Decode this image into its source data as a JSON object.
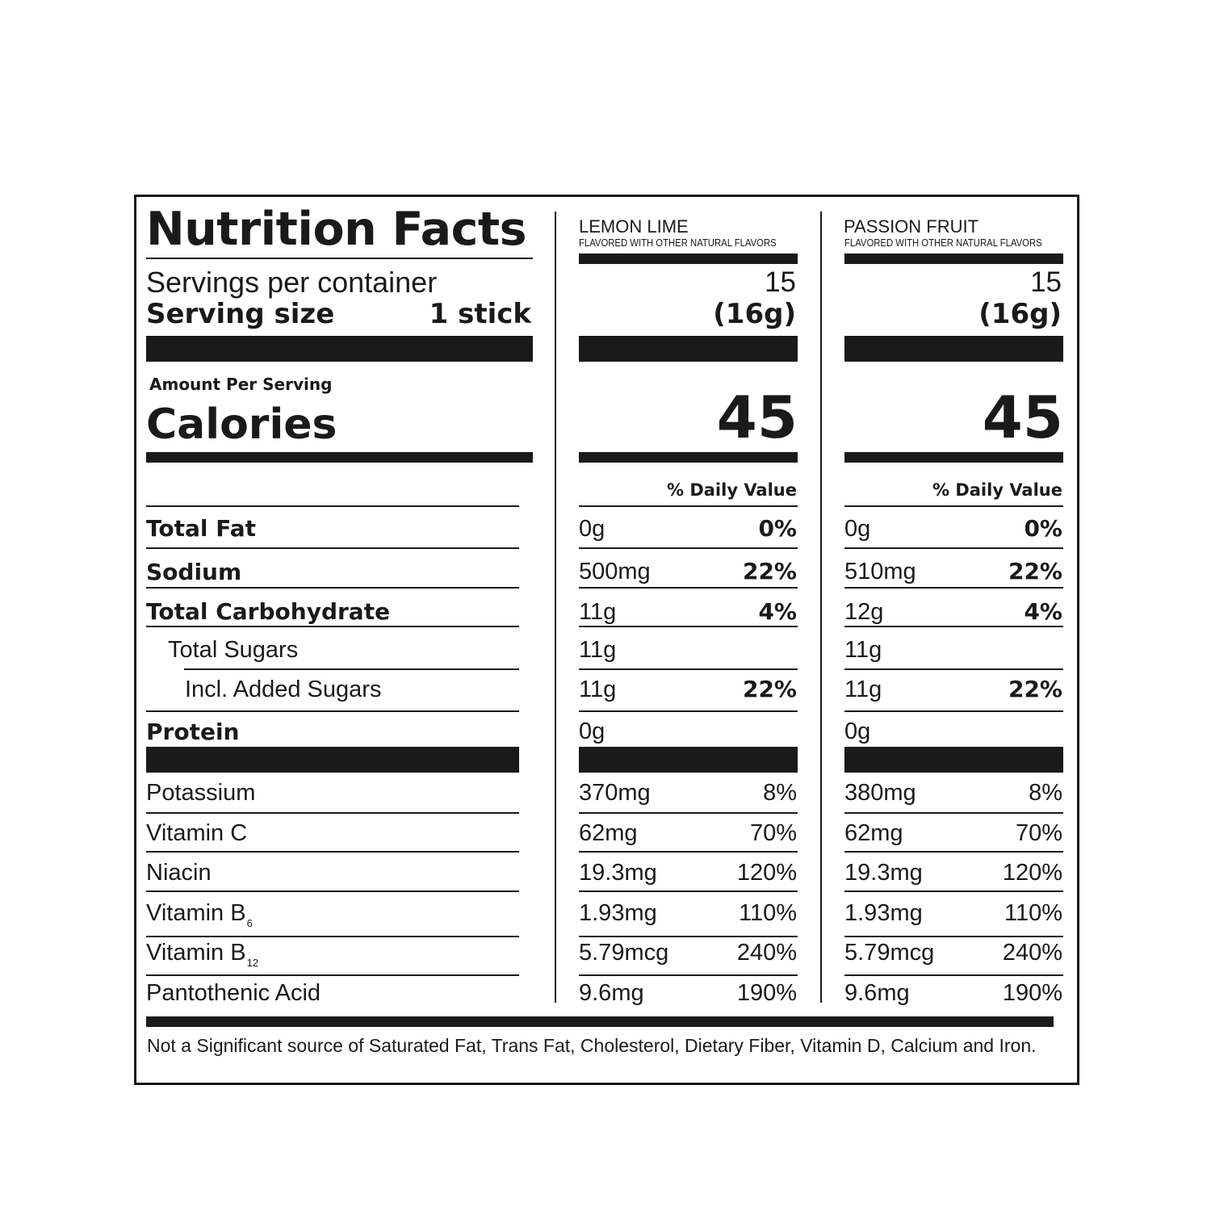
{
  "title": "Nutrition Facts",
  "servings_label": "Servings per container",
  "serving_size_label": "Serving size",
  "serving_size_value": "1 stick",
  "amount_per_serving": "Amount Per Serving",
  "calories_label": "Calories",
  "daily_value_label": "% Daily Value",
  "nutrient_labels": {
    "total_fat": "Total Fat",
    "sodium": "Sodium",
    "total_carbohydrate": "Total Carbohydrate",
    "total_sugars": "Total Sugars",
    "added_sugars": "Incl. Added Sugars",
    "protein": "Protein",
    "potassium": "Potassium",
    "vitamin_c": "Vitamin C",
    "niacin": "Niacin",
    "vitamin_b6": "Vitamin B",
    "vitamin_b6_sub": "6",
    "vitamin_b12": "Vitamin B",
    "vitamin_b12_sub": "12",
    "pantothenic_acid": "Pantothenic Acid"
  },
  "columns": [
    {
      "flavor": "LEMON LIME",
      "subtitle": "FLAVORED WITH OTHER NATURAL FLAVORS",
      "servings": "15",
      "serving_size": "(16g)",
      "calories": "45",
      "total_fat": "0g",
      "total_fat_dv": "0%",
      "sodium": "500mg",
      "sodium_dv": "22%",
      "total_carbohydrate": "11g",
      "total_carbohydrate_dv": "4%",
      "total_sugars": "11g",
      "added_sugars": "11g",
      "added_sugars_dv": "22%",
      "protein": "0g",
      "potassium": "370mg",
      "potassium_dv": "8%",
      "vitamin_c": "62mg",
      "vitamin_c_dv": "70%",
      "niacin": "19.3mg",
      "niacin_dv": "120%",
      "vitamin_b6": "1.93mg",
      "vitamin_b6_dv": "110%",
      "vitamin_b12": "5.79mcg",
      "vitamin_b12_dv": "240%",
      "pantothenic_acid": "9.6mg",
      "pantothenic_acid_dv": "190%"
    },
    {
      "flavor": "PASSION FRUIT",
      "subtitle": "FLAVORED WITH OTHER NATURAL FLAVORS",
      "servings": "15",
      "serving_size": "(16g)",
      "calories": "45",
      "total_fat": "0g",
      "total_fat_dv": "0%",
      "sodium": "510mg",
      "sodium_dv": "22%",
      "total_carbohydrate": "12g",
      "total_carbohydrate_dv": "4%",
      "total_sugars": "11g",
      "added_sugars": "11g",
      "added_sugars_dv": "22%",
      "protein": "0g",
      "potassium": "380mg",
      "potassium_dv": "8%",
      "vitamin_c": "62mg",
      "vitamin_c_dv": "70%",
      "niacin": "19.3mg",
      "niacin_dv": "120%",
      "vitamin_b6": "1.93mg",
      "vitamin_b6_dv": "110%",
      "vitamin_b12": "5.79mcg",
      "vitamin_b12_dv": "240%",
      "pantothenic_acid": "9.6mg",
      "pantothenic_acid_dv": "190%"
    }
  ],
  "footnote": "Not a Significant source of Saturated Fat, Trans Fat, Cholesterol, Dietary Fiber, Vitamin D, Calcium and Iron."
}
